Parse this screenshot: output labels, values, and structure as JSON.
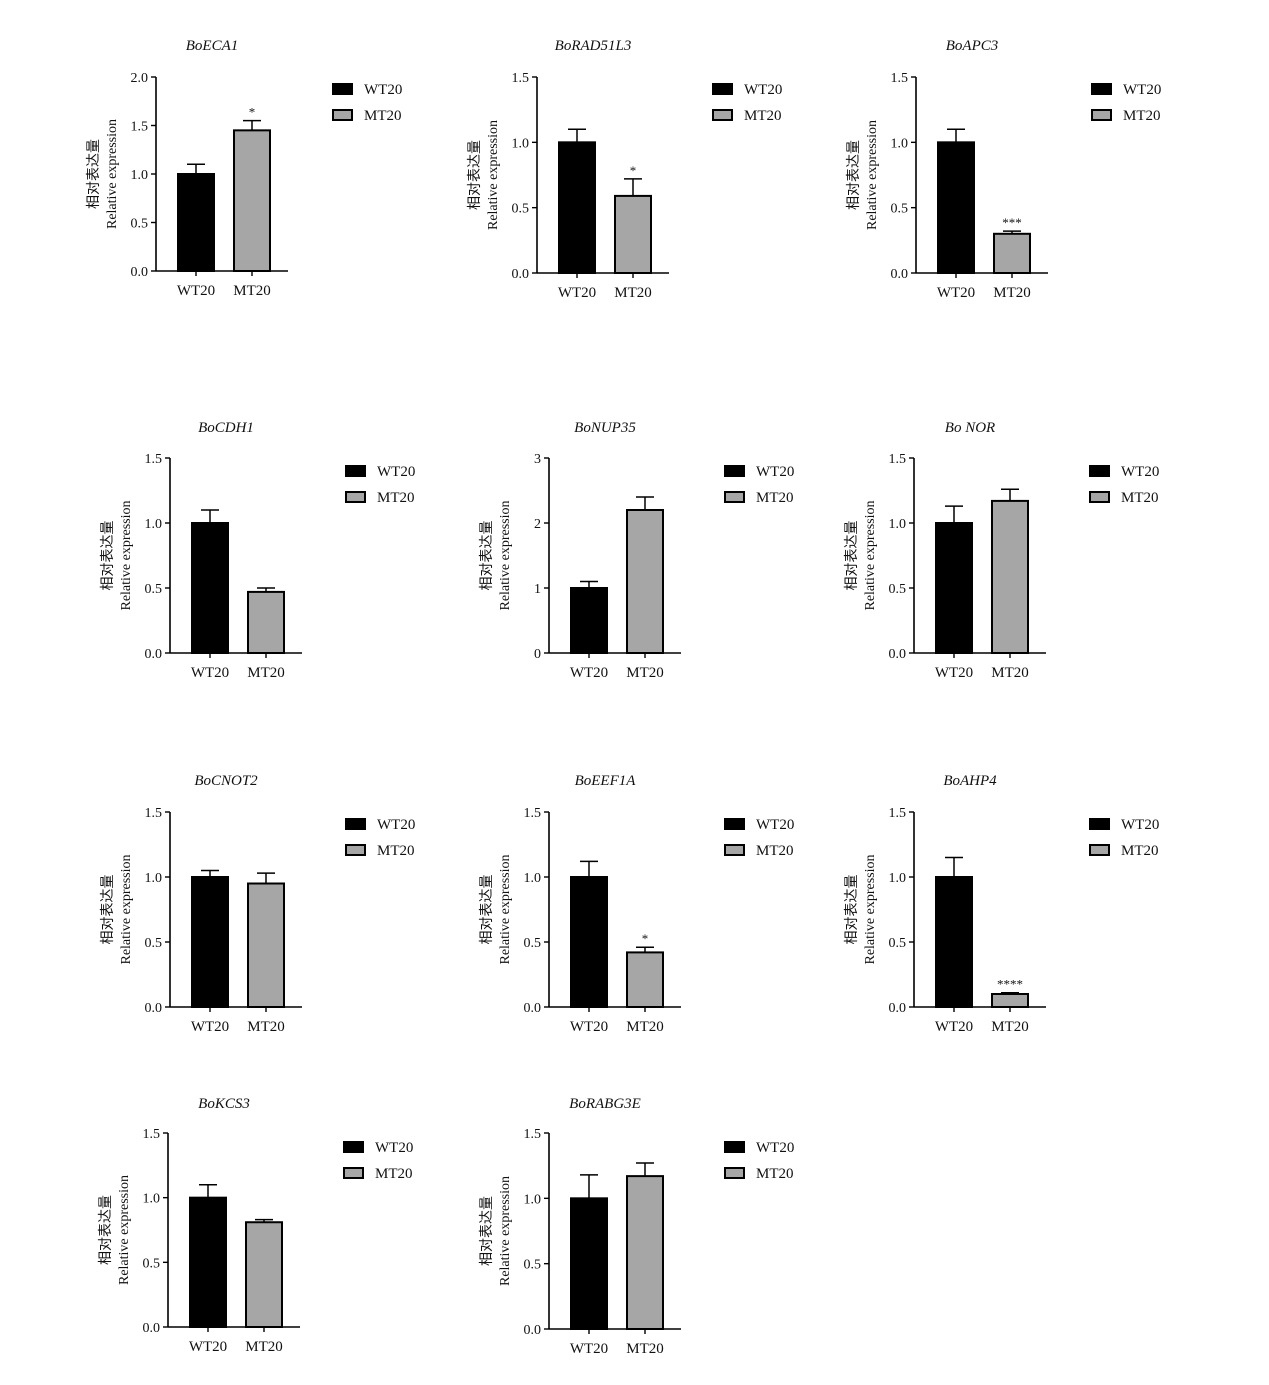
{
  "figure": {
    "background": "#ffffff",
    "colors": {
      "WT20": "#000000",
      "MT20": "#a6a6a6",
      "axis": "#000000"
    }
  },
  "chart_data": [
    {
      "type": "bar",
      "title": "BoECA1",
      "ylabel_cn": "相对表达量",
      "ylabel_en": "Relative expression",
      "categories": [
        "WT20",
        "MT20"
      ],
      "values": [
        1.0,
        1.45
      ],
      "errors": [
        0.1,
        0.1
      ],
      "significance": [
        "",
        "*"
      ],
      "ylim": [
        0,
        2.0
      ],
      "yticks": [
        "0.0",
        "0.5",
        "1.0",
        "1.5",
        "2.0"
      ],
      "legend": [
        "WT20",
        "MT20"
      ],
      "legend_position": "right"
    },
    {
      "type": "bar",
      "title": "BoRAD51L3",
      "ylabel_cn": "相对表达量",
      "ylabel_en": "Relative expression",
      "categories": [
        "WT20",
        "MT20"
      ],
      "values": [
        1.0,
        0.59
      ],
      "errors": [
        0.1,
        0.13
      ],
      "significance": [
        "",
        "*"
      ],
      "ylim": [
        0,
        1.5
      ],
      "yticks": [
        "0.0",
        "0.5",
        "1.0",
        "1.5"
      ],
      "legend": [
        "WT20",
        "MT20"
      ],
      "legend_position": "right"
    },
    {
      "type": "bar",
      "title": "BoAPC3",
      "ylabel_cn": "相对表达量",
      "ylabel_en": "Relative expression",
      "categories": [
        "WT20",
        "MT20"
      ],
      "values": [
        1.0,
        0.3
      ],
      "errors": [
        0.1,
        0.02
      ],
      "significance": [
        "",
        "***"
      ],
      "ylim": [
        0,
        1.5
      ],
      "yticks": [
        "0.0",
        "0.5",
        "1.0",
        "1.5"
      ],
      "legend": [
        "WT20",
        "MT20"
      ],
      "legend_position": "right"
    },
    {
      "type": "bar",
      "title": "BoCDH1",
      "ylabel_cn": "相对表达量",
      "ylabel_en": "Relative expression",
      "categories": [
        "WT20",
        "MT20"
      ],
      "values": [
        1.0,
        0.47
      ],
      "errors": [
        0.1,
        0.03
      ],
      "significance": [
        "",
        ""
      ],
      "ylim": [
        0,
        1.5
      ],
      "yticks": [
        "0.0",
        "0.5",
        "1.0",
        "1.5"
      ],
      "legend": [
        "WT20",
        "MT20"
      ],
      "legend_position": "right"
    },
    {
      "type": "bar",
      "title": "BoNUP35",
      "ylabel_cn": "相对表达量",
      "ylabel_en": "Relative expression",
      "categories": [
        "WT20",
        "MT20"
      ],
      "values": [
        1.0,
        2.2
      ],
      "errors": [
        0.1,
        0.2
      ],
      "significance": [
        "",
        ""
      ],
      "ylim": [
        0,
        3
      ],
      "yticks": [
        "0",
        "1",
        "2",
        "3"
      ],
      "legend": [
        "WT20",
        "MT20"
      ],
      "legend_position": "right"
    },
    {
      "type": "bar",
      "title": "Bo NOR",
      "ylabel_cn": "相对表达量",
      "ylabel_en": "Relative expression",
      "categories": [
        "WT20",
        "MT20"
      ],
      "values": [
        1.0,
        1.17
      ],
      "errors": [
        0.13,
        0.09
      ],
      "significance": [
        "",
        ""
      ],
      "ylim": [
        0,
        1.5
      ],
      "yticks": [
        "0.0",
        "0.5",
        "1.0",
        "1.5"
      ],
      "legend": [
        "WT20",
        "MT20"
      ],
      "legend_position": "right"
    },
    {
      "type": "bar",
      "title": "BoCNOT2",
      "ylabel_cn": "相对表达量",
      "ylabel_en": "Relative expression",
      "categories": [
        "WT20",
        "MT20"
      ],
      "values": [
        1.0,
        0.95
      ],
      "errors": [
        0.05,
        0.08
      ],
      "significance": [
        "",
        ""
      ],
      "ylim": [
        0,
        1.5
      ],
      "yticks": [
        "0.0",
        "0.5",
        "1.0",
        "1.5"
      ],
      "legend": [
        "WT20",
        "MT20"
      ],
      "legend_position": "right"
    },
    {
      "type": "bar",
      "title": "BoEEF1A",
      "ylabel_cn": "相对表达量",
      "ylabel_en": "Relative expression",
      "categories": [
        "WT20",
        "MT20"
      ],
      "values": [
        1.0,
        0.42
      ],
      "errors": [
        0.12,
        0.04
      ],
      "significance": [
        "",
        "*"
      ],
      "ylim": [
        0,
        1.5
      ],
      "yticks": [
        "0.0",
        "0.5",
        "1.0",
        "1.5"
      ],
      "legend": [
        "WT20",
        "MT20"
      ],
      "legend_position": "right"
    },
    {
      "type": "bar",
      "title": "BoAHP4",
      "ylabel_cn": "相对表达量",
      "ylabel_en": "Relative expression",
      "categories": [
        "WT20",
        "MT20"
      ],
      "values": [
        1.0,
        0.1
      ],
      "errors": [
        0.15,
        0.01
      ],
      "significance": [
        "",
        "****"
      ],
      "ylim": [
        0,
        1.5
      ],
      "yticks": [
        "0.0",
        "0.5",
        "1.0",
        "1.5"
      ],
      "legend": [
        "WT20",
        "MT20"
      ],
      "legend_position": "right"
    },
    {
      "type": "bar",
      "title": "BoKCS3",
      "ylabel_cn": "相对表达量",
      "ylabel_en": "Relative expression",
      "categories": [
        "WT20",
        "MT20"
      ],
      "values": [
        1.0,
        0.81
      ],
      "errors": [
        0.1,
        0.02
      ],
      "significance": [
        "",
        ""
      ],
      "ylim": [
        0,
        1.5
      ],
      "yticks": [
        "0.0",
        "0.5",
        "1.0",
        "1.5"
      ],
      "legend": [
        "WT20",
        "MT20"
      ],
      "legend_position": "right"
    },
    {
      "type": "bar",
      "title": "BoRABG3E",
      "ylabel_cn": "相对表达量",
      "ylabel_en": "Relative expression",
      "categories": [
        "WT20",
        "MT20"
      ],
      "values": [
        1.0,
        1.17
      ],
      "errors": [
        0.18,
        0.1
      ],
      "significance": [
        "",
        ""
      ],
      "ylim": [
        0,
        1.5
      ],
      "yticks": [
        "0.0",
        "0.5",
        "1.0",
        "1.5"
      ],
      "legend": [
        "WT20",
        "MT20"
      ],
      "legend_position": "right"
    }
  ]
}
